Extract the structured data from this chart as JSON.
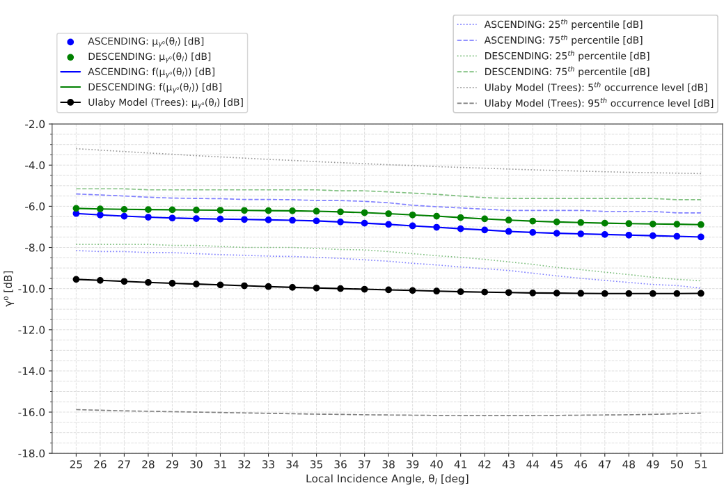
{
  "chart_data": {
    "type": "line",
    "xlabel": "Local Incidence Angle, θ$_{l}$ [deg]",
    "ylabel": "γ⁰ [dB]",
    "x": [
      25,
      26,
      27,
      28,
      29,
      30,
      31,
      32,
      33,
      34,
      35,
      36,
      37,
      38,
      39,
      40,
      41,
      42,
      43,
      44,
      45,
      46,
      47,
      48,
      49,
      50,
      51
    ],
    "xlim": [
      24,
      51.9
    ],
    "xticks": [
      25,
      26,
      27,
      28,
      29,
      30,
      31,
      32,
      33,
      34,
      35,
      36,
      37,
      38,
      39,
      40,
      41,
      42,
      43,
      44,
      45,
      46,
      47,
      48,
      49,
      50,
      51
    ],
    "ylim": [
      -18,
      -2
    ],
    "yticks": [
      {
        "value": -18,
        "label": "-18.0"
      },
      {
        "value": -16,
        "label": "-16.0"
      },
      {
        "value": -14,
        "label": "-14.0"
      },
      {
        "value": -12,
        "label": "-12.0"
      },
      {
        "value": -10,
        "label": "-10.0"
      },
      {
        "value": -8,
        "label": "-8.0"
      },
      {
        "value": -6,
        "label": "-6.0"
      },
      {
        "value": -4,
        "label": "-4.0"
      },
      {
        "value": -2,
        "label": "-2.0"
      }
    ],
    "grid": true,
    "legend": "top",
    "series": [
      {
        "name": "ASCENDING: μ$_{γ⁰}$(θ$_{l}$) [dB]",
        "type": "scatter",
        "marker": "circle",
        "color": "#0000ff",
        "values": [
          -6.35,
          -6.42,
          -6.48,
          -6.53,
          -6.57,
          -6.6,
          -6.62,
          -6.64,
          -6.66,
          -6.68,
          -6.71,
          -6.76,
          -6.82,
          -6.88,
          -6.95,
          -7.02,
          -7.09,
          -7.15,
          -7.22,
          -7.27,
          -7.31,
          -7.34,
          -7.37,
          -7.4,
          -7.43,
          -7.46,
          -7.49
        ]
      },
      {
        "name": "DESCENDING: μ$_{γ⁰}$(θ$_{l}$) [dB]",
        "type": "scatter",
        "marker": "circle",
        "color": "#008000",
        "values": [
          -6.1,
          -6.13,
          -6.15,
          -6.16,
          -6.17,
          -6.18,
          -6.19,
          -6.2,
          -6.21,
          -6.22,
          -6.24,
          -6.27,
          -6.31,
          -6.36,
          -6.42,
          -6.48,
          -6.55,
          -6.61,
          -6.67,
          -6.72,
          -6.76,
          -6.79,
          -6.82,
          -6.84,
          -6.86,
          -6.87,
          -6.89
        ]
      },
      {
        "name": "ASCENDING: f(μ$_{γ⁰}$(θ$_{l}$)) [dB]",
        "line_style": "solid",
        "color": "#0000ff",
        "values": [
          -6.35,
          -6.42,
          -6.48,
          -6.53,
          -6.57,
          -6.6,
          -6.62,
          -6.64,
          -6.66,
          -6.68,
          -6.71,
          -6.76,
          -6.82,
          -6.88,
          -6.95,
          -7.02,
          -7.09,
          -7.15,
          -7.22,
          -7.27,
          -7.31,
          -7.34,
          -7.37,
          -7.4,
          -7.43,
          -7.46,
          -7.49
        ]
      },
      {
        "name": "DESCENDING: f(μ$_{γ⁰}$(θ$_{l}$)) [dB]",
        "line_style": "solid",
        "color": "#008000",
        "values": [
          -6.1,
          -6.13,
          -6.15,
          -6.16,
          -6.17,
          -6.18,
          -6.19,
          -6.2,
          -6.21,
          -6.22,
          -6.24,
          -6.27,
          -6.31,
          -6.36,
          -6.42,
          -6.48,
          -6.55,
          -6.61,
          -6.67,
          -6.72,
          -6.76,
          -6.79,
          -6.82,
          -6.84,
          -6.86,
          -6.87,
          -6.89
        ]
      },
      {
        "name": "Ulaby Model (Trees): μ$_{γ⁰}$(θ$_{l}$) [dB]",
        "line_style": "solid",
        "marker": "circle",
        "color": "#000000",
        "values": [
          -9.55,
          -9.6,
          -9.65,
          -9.7,
          -9.74,
          -9.78,
          -9.82,
          -9.86,
          -9.9,
          -9.94,
          -9.97,
          -10.0,
          -10.03,
          -10.06,
          -10.09,
          -10.12,
          -10.15,
          -10.17,
          -10.19,
          -10.21,
          -10.22,
          -10.23,
          -10.24,
          -10.24,
          -10.24,
          -10.24,
          -10.23
        ]
      },
      {
        "name": "ASCENDING: 25$^{th}$ percentile [dB]",
        "line_style": "dotted",
        "color": "#8080ff",
        "values": [
          -8.15,
          -8.2,
          -8.2,
          -8.25,
          -8.25,
          -8.3,
          -8.35,
          -8.38,
          -8.42,
          -8.44,
          -8.48,
          -8.53,
          -8.6,
          -8.67,
          -8.77,
          -8.85,
          -8.95,
          -9.03,
          -9.12,
          -9.25,
          -9.38,
          -9.5,
          -9.6,
          -9.7,
          -9.8,
          -9.85,
          -9.98
        ]
      },
      {
        "name": "ASCENDING: 75$^{th}$ percentile [dB]",
        "line_style": "dashed",
        "color": "#8080ff",
        "values": [
          -5.4,
          -5.45,
          -5.5,
          -5.56,
          -5.6,
          -5.62,
          -5.63,
          -5.67,
          -5.67,
          -5.68,
          -5.72,
          -5.72,
          -5.76,
          -5.83,
          -5.95,
          -6.02,
          -6.08,
          -6.14,
          -6.2,
          -6.2,
          -6.2,
          -6.2,
          -6.25,
          -6.25,
          -6.25,
          -6.32,
          -6.32
        ]
      },
      {
        "name": "DESCENDING: 25$^{th}$ percentile [dB]",
        "line_style": "dotted",
        "color": "#80c080",
        "values": [
          -7.85,
          -7.85,
          -7.85,
          -7.85,
          -7.9,
          -7.9,
          -7.95,
          -8.0,
          -8.0,
          -8.0,
          -8.05,
          -8.1,
          -8.12,
          -8.2,
          -8.3,
          -8.4,
          -8.48,
          -8.58,
          -8.7,
          -8.82,
          -8.97,
          -9.08,
          -9.2,
          -9.32,
          -9.45,
          -9.55,
          -9.62
        ]
      },
      {
        "name": "DESCENDING: 75$^{th}$ percentile [dB]",
        "line_style": "dashed",
        "color": "#80c080",
        "values": [
          -5.15,
          -5.15,
          -5.15,
          -5.2,
          -5.2,
          -5.2,
          -5.2,
          -5.2,
          -5.2,
          -5.2,
          -5.2,
          -5.25,
          -5.25,
          -5.3,
          -5.36,
          -5.42,
          -5.5,
          -5.58,
          -5.62,
          -5.62,
          -5.62,
          -5.62,
          -5.62,
          -5.62,
          -5.62,
          -5.68,
          -5.68
        ]
      },
      {
        "name": "Ulaby Model (Trees): 5$^{th}$ occurrence level [dB]",
        "line_style": "dotted",
        "color": "#999999",
        "values": [
          -3.2,
          -3.27,
          -3.34,
          -3.41,
          -3.47,
          -3.54,
          -3.6,
          -3.66,
          -3.72,
          -3.77,
          -3.83,
          -3.88,
          -3.93,
          -3.98,
          -4.02,
          -4.07,
          -4.11,
          -4.15,
          -4.19,
          -4.23,
          -4.26,
          -4.29,
          -4.32,
          -4.35,
          -4.37,
          -4.39,
          -4.41
        ]
      },
      {
        "name": "Ulaby Model (Trees): 95$^{th}$ occurrence level [dB]",
        "line_style": "dashed",
        "color": "#808080",
        "values": [
          -15.88,
          -15.91,
          -15.94,
          -15.96,
          -15.98,
          -16.0,
          -16.02,
          -16.04,
          -16.06,
          -16.08,
          -16.1,
          -16.11,
          -16.13,
          -16.14,
          -16.15,
          -16.16,
          -16.17,
          -16.17,
          -16.17,
          -16.17,
          -16.16,
          -16.15,
          -16.14,
          -16.13,
          -16.11,
          -16.08,
          -16.05
        ]
      }
    ]
  }
}
